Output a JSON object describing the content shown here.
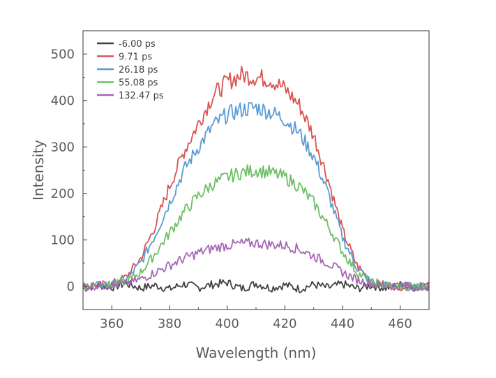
{
  "chart_data": {
    "type": "line",
    "title": "",
    "xlabel": "Wavelength (nm)",
    "ylabel": "Intensity",
    "xlim": [
      350,
      470
    ],
    "ylim": [
      -50,
      550
    ],
    "xticks": [
      360,
      380,
      400,
      420,
      440,
      460
    ],
    "yticks": [
      0,
      100,
      200,
      300,
      400,
      500
    ],
    "grid": false,
    "legend_position": "top-left",
    "series": [
      {
        "name": "-6.00 ps",
        "color": "#404040",
        "x": [
          350,
          355,
          360,
          365,
          370,
          375,
          380,
          385,
          390,
          395,
          400,
          405,
          410,
          415,
          420,
          425,
          430,
          435,
          440,
          445,
          450,
          455,
          460,
          465,
          470
        ],
        "y": [
          -5,
          3,
          -2,
          6,
          -4,
          2,
          -6,
          5,
          -3,
          4,
          8,
          -5,
          6,
          -4,
          3,
          -6,
          4,
          -3,
          5,
          -5,
          2,
          -4,
          3,
          -2,
          0
        ]
      },
      {
        "name": "9.71 ps",
        "color": "#d9534f",
        "x": [
          350,
          355,
          360,
          365,
          370,
          375,
          380,
          385,
          390,
          395,
          400,
          405,
          410,
          415,
          420,
          425,
          430,
          435,
          440,
          445,
          450,
          455,
          460,
          465,
          470
        ],
        "y": [
          0,
          2,
          5,
          20,
          60,
          130,
          215,
          290,
          350,
          410,
          440,
          455,
          450,
          445,
          425,
          390,
          325,
          230,
          120,
          45,
          10,
          2,
          0,
          0,
          0
        ]
      },
      {
        "name": "26.18 ps",
        "color": "#5b9bd5",
        "x": [
          350,
          355,
          360,
          365,
          370,
          375,
          380,
          385,
          390,
          395,
          400,
          405,
          410,
          415,
          420,
          425,
          430,
          435,
          440,
          445,
          450,
          455,
          460,
          465,
          470
        ],
        "y": [
          0,
          2,
          4,
          15,
          50,
          110,
          180,
          250,
          300,
          345,
          370,
          380,
          385,
          375,
          360,
          330,
          280,
          200,
          105,
          40,
          8,
          2,
          0,
          0,
          0
        ]
      },
      {
        "name": "55.08 ps",
        "color": "#6dbf67",
        "x": [
          350,
          355,
          360,
          365,
          370,
          375,
          380,
          385,
          390,
          395,
          400,
          405,
          410,
          415,
          420,
          425,
          430,
          435,
          440,
          445,
          450,
          455,
          460,
          465,
          470
        ],
        "y": [
          0,
          2,
          3,
          10,
          30,
          70,
          115,
          160,
          195,
          220,
          235,
          245,
          250,
          245,
          235,
          215,
          180,
          130,
          75,
          30,
          8,
          2,
          0,
          0,
          0
        ]
      },
      {
        "name": "132.47 ps",
        "color": "#a667b2",
        "x": [
          350,
          355,
          360,
          365,
          370,
          375,
          380,
          385,
          390,
          395,
          400,
          405,
          410,
          415,
          420,
          425,
          430,
          435,
          440,
          445,
          450,
          455,
          460,
          465,
          470
        ],
        "y": [
          0,
          1,
          2,
          6,
          15,
          30,
          45,
          60,
          72,
          82,
          88,
          92,
          93,
          90,
          88,
          80,
          65,
          50,
          30,
          14,
          5,
          1,
          0,
          0,
          0
        ]
      }
    ]
  }
}
